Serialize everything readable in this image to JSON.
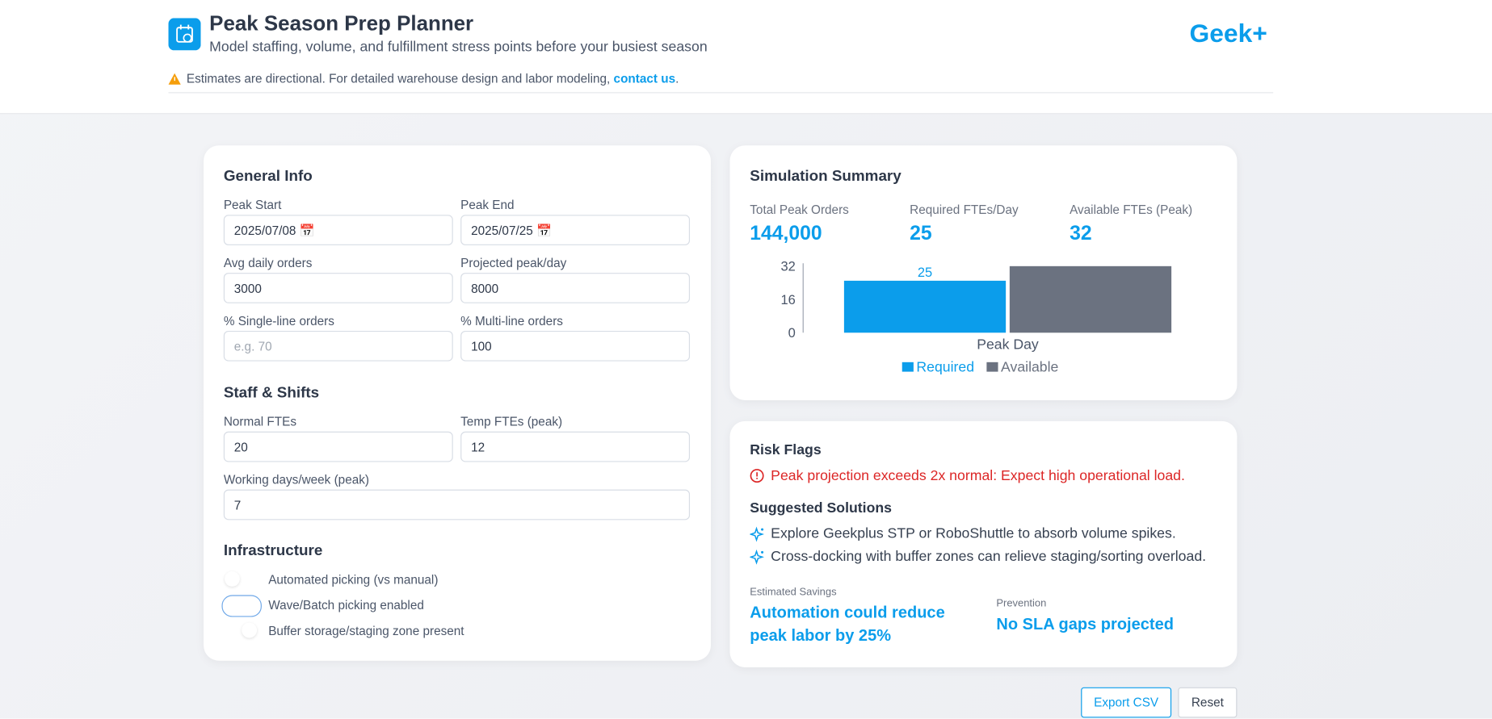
{
  "header": {
    "title": "Peak Season Prep Planner",
    "subtitle": "Model staffing, volume, and fulfillment stress points before your busiest season",
    "logo": "Geek+",
    "warning": {
      "text": "Estimates are directional. For detailed warehouse design and labor modeling,",
      "link": "contact us",
      "end": "."
    }
  },
  "general": {
    "title": "General Info",
    "fields": [
      {
        "label": "Peak Start",
        "value": "2025/07/08"
      },
      {
        "label": "Peak End",
        "value": "2025/07/25"
      },
      {
        "label": "Avg daily orders",
        "value": "3000"
      },
      {
        "label": "Projected peak/day",
        "value": "8000"
      },
      {
        "label": "% Single-line orders",
        "placeholder": "e.g. 70"
      },
      {
        "label": "% Multi-line orders",
        "value": "100"
      }
    ]
  },
  "staff": {
    "title": "Staff & Shifts",
    "fields": [
      {
        "label": "Normal FTEs",
        "value": "20"
      },
      {
        "label": "Temp FTEs (peak)",
        "value": "12"
      },
      {
        "label": "Working days/week (peak)",
        "value": "7"
      }
    ]
  },
  "infrastructure": {
    "title": "Infrastructure",
    "toggles": [
      "Automated picking (vs manual)",
      "Wave/Batch picking enabled",
      "Buffer storage/staging zone present"
    ]
  },
  "summary": {
    "title": "Simulation Summary",
    "stats": [
      {
        "label": "Total Peak Orders",
        "value": "144,000"
      },
      {
        "label": "Required FTEs/Day",
        "value": "25"
      },
      {
        "label": "Available FTEs (Peak)",
        "value": "32"
      }
    ]
  },
  "chart": {
    "type": "bar",
    "categories": [
      "Peak Day"
    ],
    "series": [
      {
        "name": "Required",
        "color": "#0b9deb",
        "values": [
          25
        ]
      },
      {
        "name": "Available",
        "color": "#6b7280",
        "values": [
          32
        ]
      }
    ],
    "ylim": [
      0,
      32
    ],
    "yticks": [
      0,
      16,
      32
    ]
  },
  "risk": {
    "title": "Risk Flags",
    "flag": "Peak projection exceeds 2x normal: Expect high operational load.",
    "solutions_title": "Suggested Solutions",
    "solutions": [
      "Explore Geekplus STP or RoboShuttle to absorb volume spikes.",
      "Cross-docking with buffer zones can relieve staging/sorting overload."
    ],
    "savings_label": "Estimated Savings",
    "savings": [
      "Automation could reduce",
      "peak labor by 25%"
    ],
    "prevention_label": "Prevention",
    "prevention": "No SLA gaps projected"
  },
  "buttons": [
    "Export CSV",
    "Reset"
  ]
}
